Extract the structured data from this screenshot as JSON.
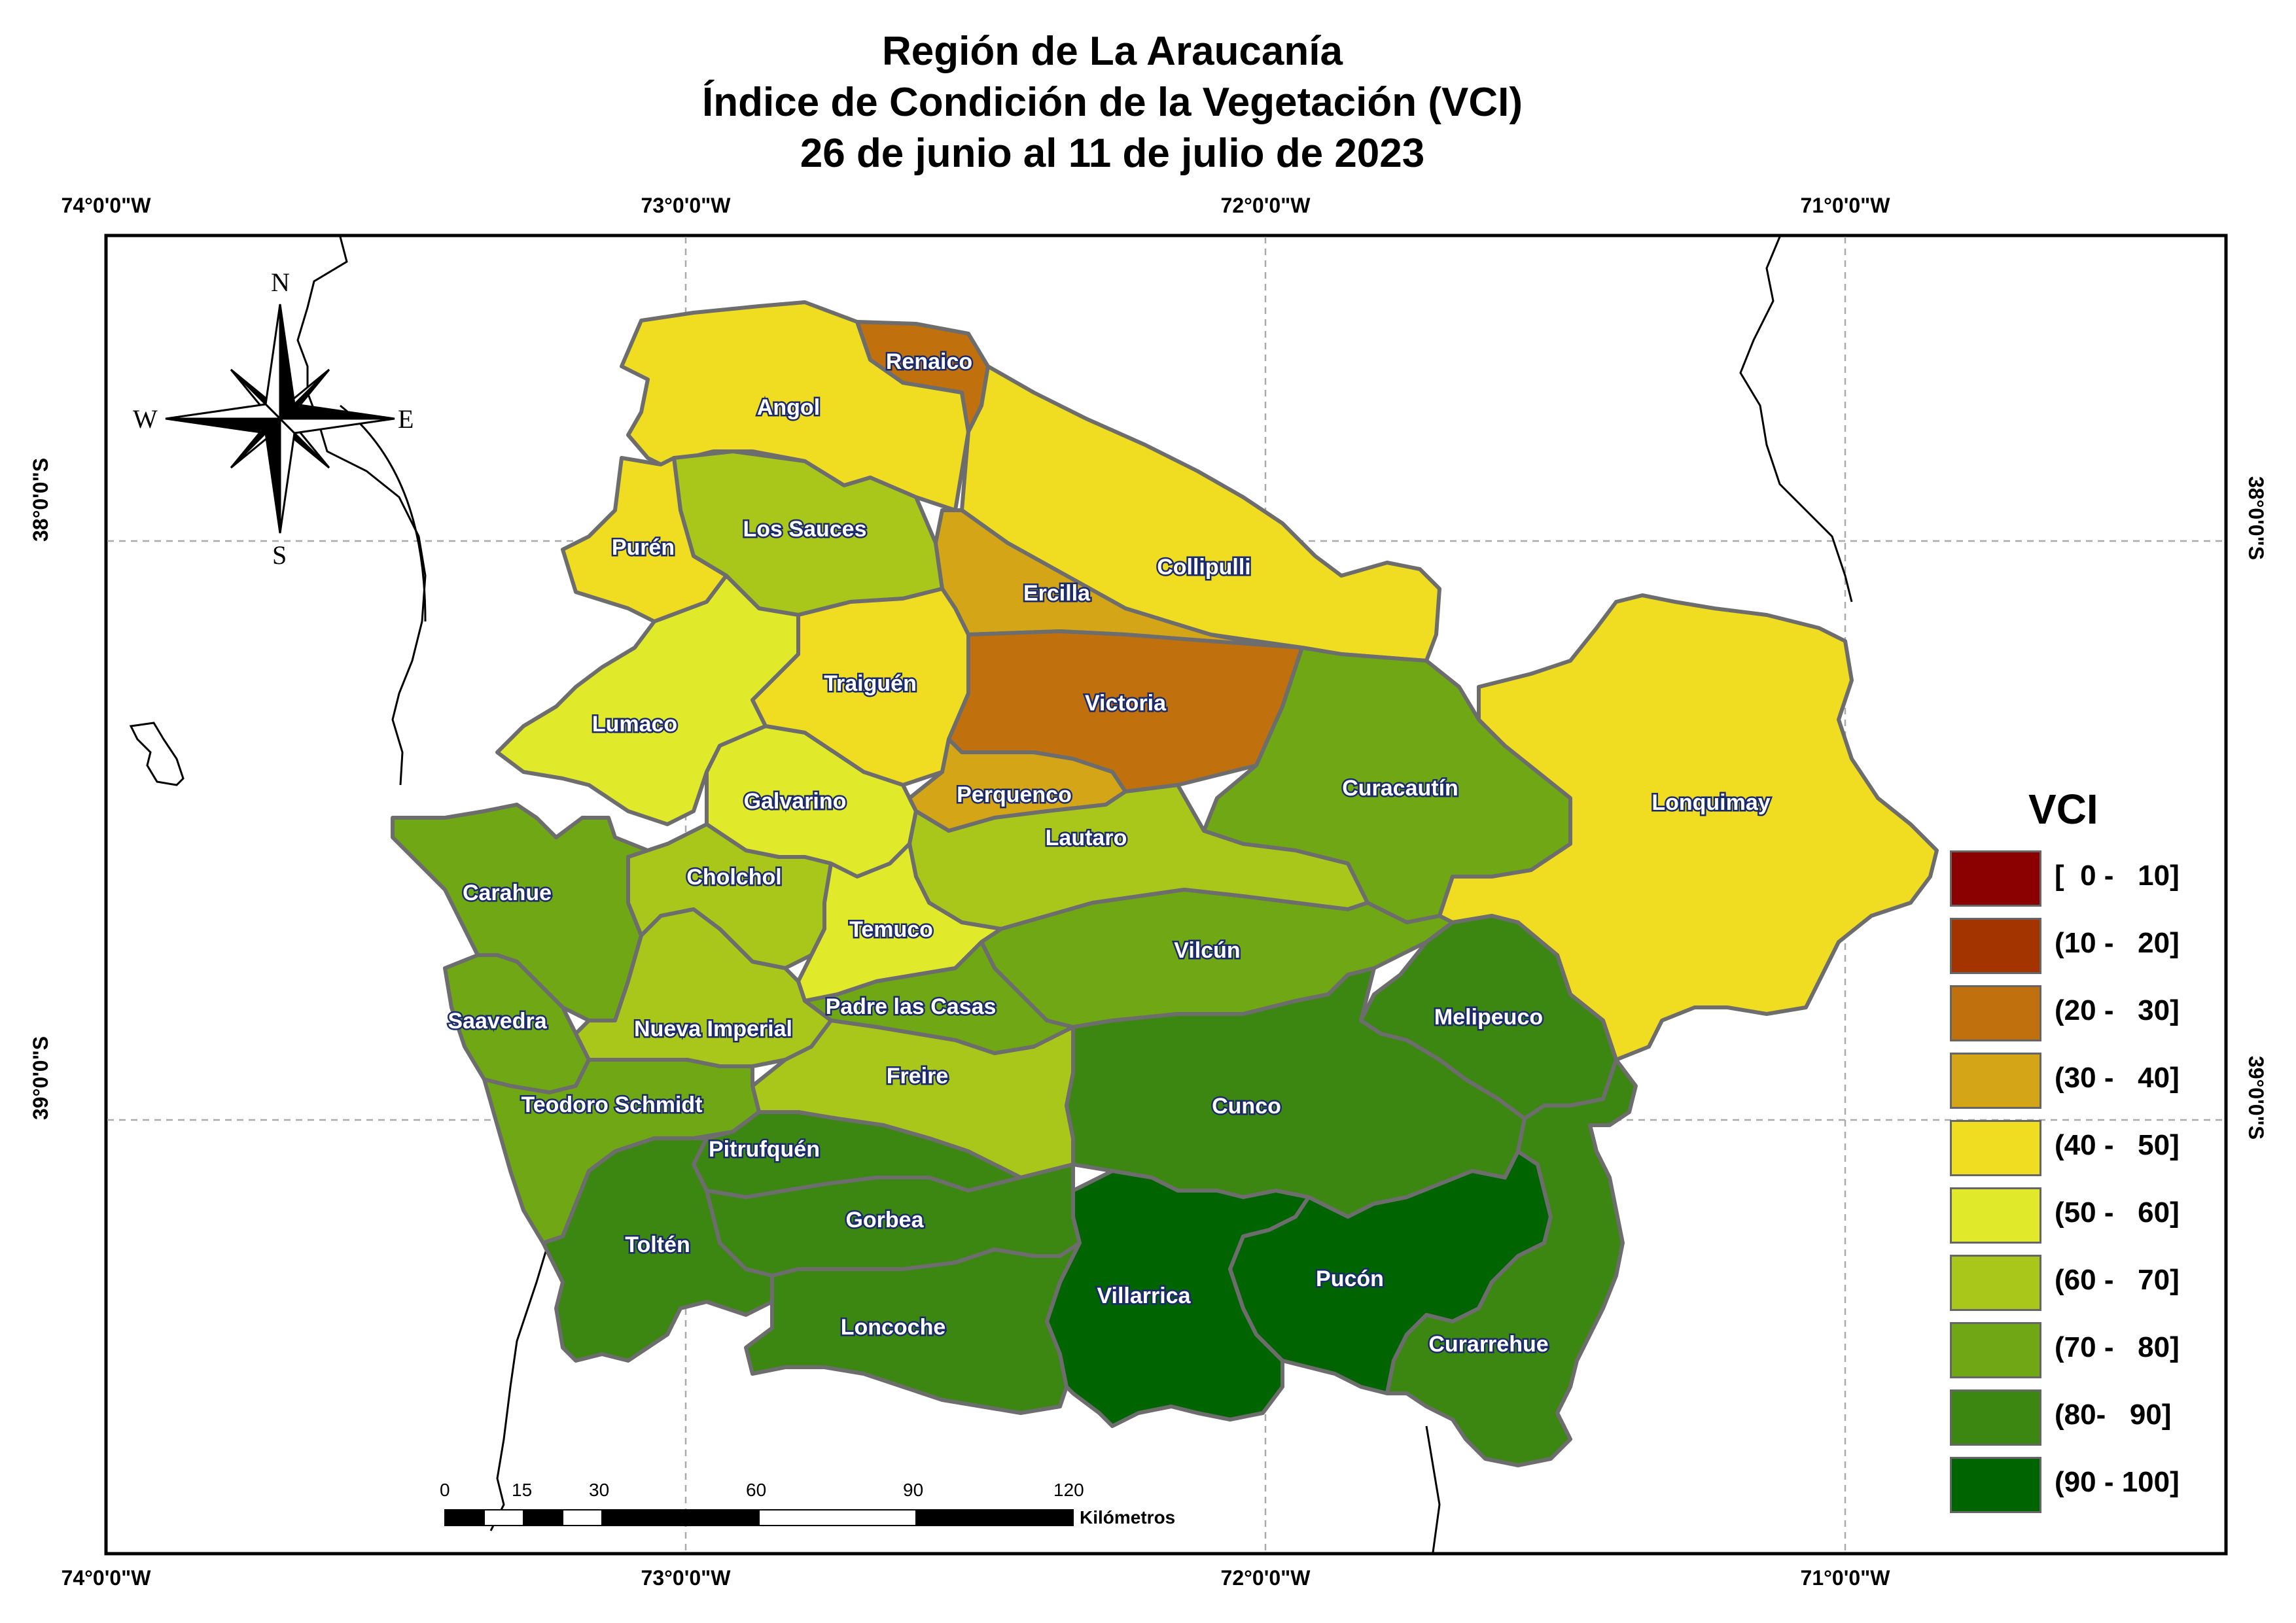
{
  "title": {
    "line1": "Región de La Araucanía",
    "line2": "Índice de Condición de la Vegetación (VCI)",
    "line3": "26 de junio al 11 de julio de 2023"
  },
  "graticule": {
    "lon_labels": [
      "74°0'0\"W",
      "73°0'0\"W",
      "72°0'0\"W",
      "71°0'0\"W"
    ],
    "lat_labels": [
      "38°0'0\"S",
      "39°0'0\"S"
    ]
  },
  "compass": {
    "n": "N",
    "s": "S",
    "e": "E",
    "w": "W"
  },
  "legend": {
    "title": "VCI",
    "classes": [
      {
        "label": "[  0 -   10]",
        "color": "#8b0000"
      },
      {
        "label": "(10 -   20]",
        "color": "#a33400"
      },
      {
        "label": "(20 -   30]",
        "color": "#c0700c"
      },
      {
        "label": "(30 -   40]",
        "color": "#d4a516"
      },
      {
        "label": "(40 -   50]",
        "color": "#f0dc20"
      },
      {
        "label": "(50 -   60]",
        "color": "#e1ea2a"
      },
      {
        "label": "(60 -   70]",
        "color": "#a9c61b"
      },
      {
        "label": "(70 -   80]",
        "color": "#6fa814"
      },
      {
        "label": "(80-   90]",
        "color": "#3c8612"
      },
      {
        "label": "(90 - 100]",
        "color": "#006400"
      }
    ]
  },
  "scale_bar": {
    "ticks": [
      "0",
      "15",
      "30",
      "60",
      "90",
      "120"
    ],
    "unit": "Kilómetros"
  },
  "communes": [
    {
      "name": "Renaico",
      "vci_class": "(20 - 30]"
    },
    {
      "name": "Angol",
      "vci_class": "(40 - 50]"
    },
    {
      "name": "Collipulli",
      "vci_class": "(40 - 50]"
    },
    {
      "name": "Los Sauces",
      "vci_class": "(60 - 70]"
    },
    {
      "name": "Purén",
      "vci_class": "(40 - 50]"
    },
    {
      "name": "Ercilla",
      "vci_class": "(30 - 40]"
    },
    {
      "name": "Traiguén",
      "vci_class": "(40 - 50]"
    },
    {
      "name": "Victoria",
      "vci_class": "(20 - 30]"
    },
    {
      "name": "Lumaco",
      "vci_class": "(50 - 60]"
    },
    {
      "name": "Curacautín",
      "vci_class": "(70 - 80]"
    },
    {
      "name": "Lonquimay",
      "vci_class": "(40 - 50]"
    },
    {
      "name": "Galvarino",
      "vci_class": "(50 - 60]"
    },
    {
      "name": "Perquenco",
      "vci_class": "(30 - 40]"
    },
    {
      "name": "Lautaro",
      "vci_class": "(60 - 70]"
    },
    {
      "name": "Carahue",
      "vci_class": "(70 - 80]"
    },
    {
      "name": "Cholchol",
      "vci_class": "(60 - 70]"
    },
    {
      "name": "Temuco",
      "vci_class": "(50 - 60]"
    },
    {
      "name": "Vilcún",
      "vci_class": "(70 - 80]"
    },
    {
      "name": "Padre las Casas",
      "vci_class": "(70 - 80]"
    },
    {
      "name": "Melipeuco",
      "vci_class": "(80- 90]"
    },
    {
      "name": "Saavedra",
      "vci_class": "(70 - 80]"
    },
    {
      "name": "Nueva Imperial",
      "vci_class": "(60 - 70]"
    },
    {
      "name": "Freire",
      "vci_class": "(60 - 70]"
    },
    {
      "name": "Teodoro Schmidt",
      "vci_class": "(70 - 80]"
    },
    {
      "name": "Cunco",
      "vci_class": "(80- 90]"
    },
    {
      "name": "Pitrufquén",
      "vci_class": "(80- 90]"
    },
    {
      "name": "Gorbea",
      "vci_class": "(80- 90]"
    },
    {
      "name": "Toltén",
      "vci_class": "(80- 90]"
    },
    {
      "name": "Villarrica",
      "vci_class": "(90 - 100]"
    },
    {
      "name": "Pucón",
      "vci_class": "(90 - 100]"
    },
    {
      "name": "Loncoche",
      "vci_class": "(80- 90]"
    },
    {
      "name": "Curarrehue",
      "vci_class": "(80- 90]"
    }
  ]
}
